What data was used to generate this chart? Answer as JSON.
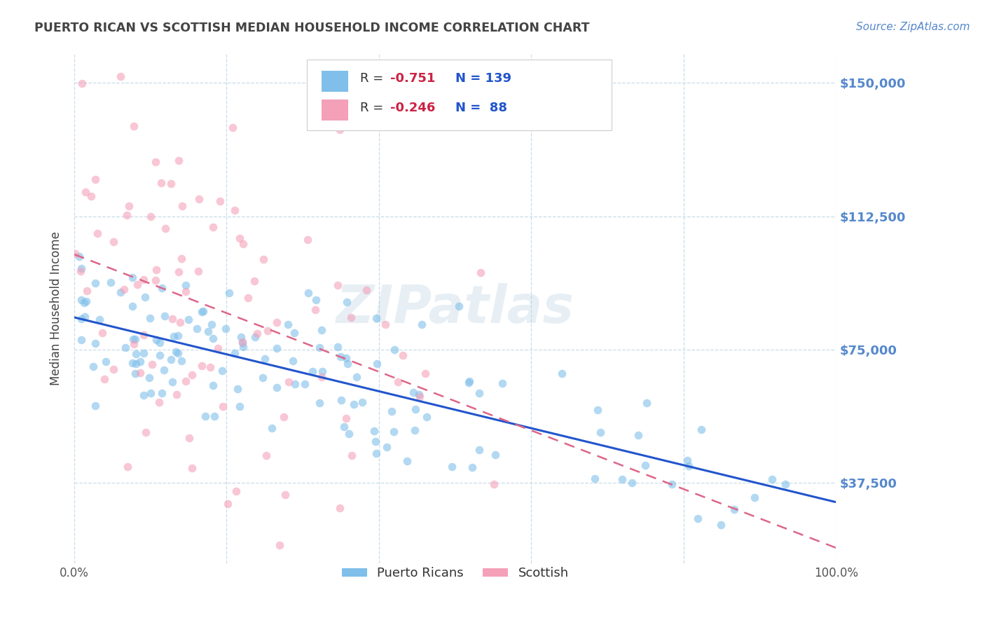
{
  "title": "PUERTO RICAN VS SCOTTISH MEDIAN HOUSEHOLD INCOME CORRELATION CHART",
  "source": "Source: ZipAtlas.com",
  "ylabel": "Median Household Income",
  "ytick_labels": [
    "$37,500",
    "$75,000",
    "$112,500",
    "$150,000"
  ],
  "ytick_values": [
    37500,
    75000,
    112500,
    150000
  ],
  "ymin": 15000,
  "ymax": 158000,
  "xmin": 0.0,
  "xmax": 1.0,
  "blue_color": "#7fbfea",
  "pink_color": "#f4a0b8",
  "blue_line_color": "#2255cc",
  "pink_line_color": "#dd6688",
  "watermark": "ZIPatlas",
  "background_color": "#ffffff",
  "grid_color": "#c8dce8",
  "title_color": "#444444",
  "source_color": "#5588cc",
  "axis_label_color": "#444444",
  "ytick_color": "#5588cc",
  "legend_r_color": "#cc2244",
  "legend_n_color": "#2255cc",
  "scatter_alpha": 0.6,
  "scatter_size": 70,
  "blue_r": "-0.751",
  "blue_n": "139",
  "pink_r": "-0.246",
  "pink_n": "88"
}
